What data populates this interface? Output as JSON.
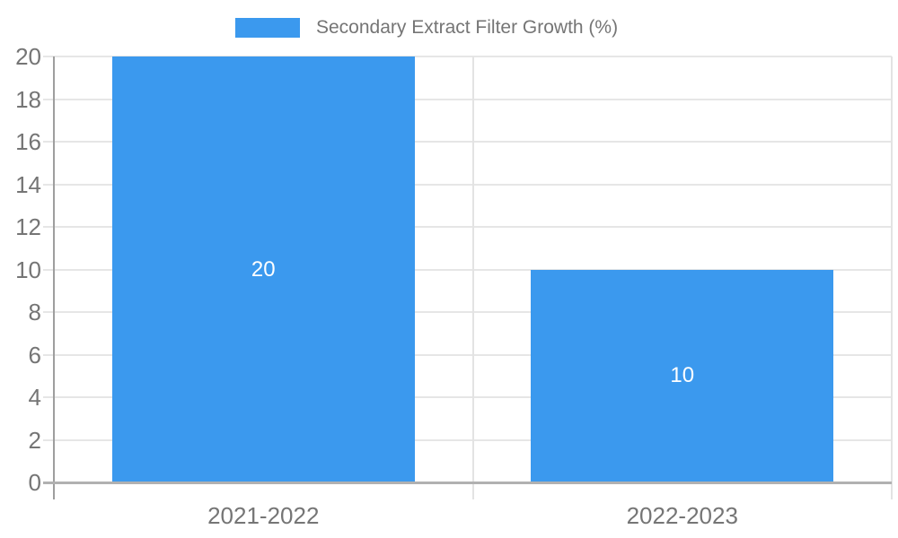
{
  "legend": {
    "label": "Secondary Extract Filter Growth (%)",
    "swatch_color": "#3b99ee"
  },
  "chart_data": {
    "type": "bar",
    "title": "Secondary Extract Filter Growth (%)",
    "categories": [
      "2021-2022",
      "2022-2023"
    ],
    "series": [
      {
        "name": "Secondary Extract Filter Growth (%)",
        "color": "#3b99ee",
        "values": [
          20,
          10
        ]
      }
    ],
    "bar_value_labels": [
      "20",
      "10"
    ],
    "xlabel": "",
    "ylabel": "",
    "ylim": [
      0,
      20
    ],
    "yticks": [
      0,
      2,
      4,
      6,
      8,
      10,
      12,
      14,
      16,
      18,
      20
    ],
    "grid": true,
    "legend_position": "top-center",
    "colors": {
      "bar": "#3b99ee",
      "bar_label_text": "#ffffff",
      "gridline": "#e6e6e6",
      "category_divider": "#e3e3e3",
      "axis_line": "#9e9e9e",
      "baseline": "#b1b1b1",
      "tick_text": "#757575",
      "legend_text": "#757575",
      "background": "#ffffff"
    }
  }
}
